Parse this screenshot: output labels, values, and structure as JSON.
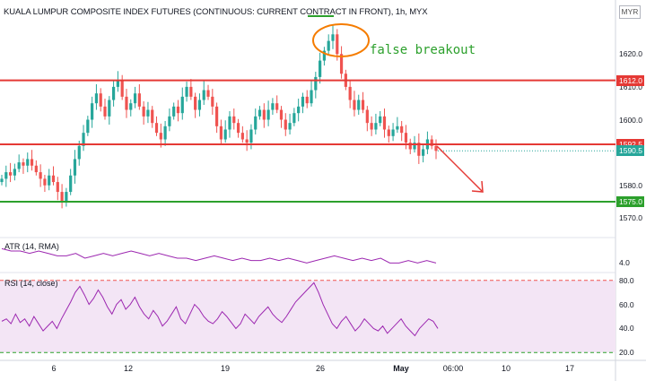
{
  "title": "KUALA LUMPUR COMPOSITE INDEX FUTURES (CONTINUOUS: CURRENT CONTRACT IN FRONT), 1h, MYX",
  "currency": "MYR",
  "annotation": "false breakout",
  "atr_label": "ATR (14, RMA)",
  "rsi_label": "RSI (14, close)",
  "colors": {
    "up": "#26a69a",
    "down": "#ef5350",
    "resistance": "#e53935",
    "support": "#2ca02c",
    "oscillator": "#9c27b0",
    "rsi_band": "#f3e5f5",
    "arrow": "#e53935",
    "ellipse": "#f57c00",
    "last_price": "#26a69a"
  },
  "chart_data": [
    {
      "type": "candlestick",
      "title": "KUALA LUMPUR COMPOSITE INDEX FUTURES (CONTINUOUS: CURRENT CONTRACT IN FRONT), 1h, MYX",
      "x_ticks": [
        "6",
        "12",
        "19",
        "26",
        "May",
        "06:00",
        "10",
        "17"
      ],
      "y_ticks": [
        1570.0,
        1580.0,
        1600.0,
        1610.0,
        1620.0
      ],
      "ylim": [
        1566,
        1631
      ],
      "horizontal_lines": [
        {
          "value": 1612.0,
          "label": "1612.0",
          "color": "#e53935"
        },
        {
          "value": 1592.5,
          "label": "1592.5",
          "color": "#e53935"
        },
        {
          "value": 1575.0,
          "label": "1575.0",
          "color": "#2ca02c"
        }
      ],
      "last_price": {
        "value": 1590.5,
        "label": "1590.5"
      },
      "approx_closes": [
        1582,
        1584,
        1583,
        1585,
        1587,
        1586,
        1588,
        1586,
        1584,
        1582,
        1580,
        1583,
        1581,
        1578,
        1575,
        1578,
        1583,
        1588,
        1592,
        1596,
        1600,
        1605,
        1608,
        1604,
        1601,
        1606,
        1610,
        1612,
        1607,
        1603,
        1605,
        1608,
        1604,
        1601,
        1603,
        1599,
        1596,
        1594,
        1598,
        1601,
        1604,
        1602,
        1607,
        1610,
        1607,
        1603,
        1606,
        1609,
        1607,
        1604,
        1598,
        1594,
        1597,
        1601,
        1599,
        1596,
        1594,
        1593,
        1597,
        1601,
        1603,
        1600,
        1603,
        1605,
        1603,
        1600,
        1597,
        1599,
        1602,
        1604,
        1607,
        1605,
        1609,
        1613,
        1618,
        1621,
        1624,
        1626,
        1620,
        1614,
        1610,
        1606,
        1603,
        1606,
        1603,
        1599,
        1597,
        1599,
        1601,
        1597,
        1595,
        1597,
        1598,
        1596,
        1593,
        1591,
        1593,
        1589,
        1591,
        1594,
        1592,
        1590.5
      ]
    },
    {
      "type": "line",
      "title": "ATR (14, RMA)",
      "y_ticks": [
        4.0
      ],
      "approx_values": [
        4.6,
        4.5,
        4.5,
        4.4,
        4.5,
        4.4,
        4.3,
        4.3,
        4.4,
        4.2,
        4.3,
        4.4,
        4.3,
        4.4,
        4.5,
        4.4,
        4.3,
        4.4,
        4.3,
        4.2,
        4.2,
        4.1,
        4.2,
        4.3,
        4.2,
        4.1,
        4.2,
        4.1,
        4.1,
        4.2,
        4.1,
        4.2,
        4.1,
        4.0,
        4.1,
        4.2,
        4.3,
        4.2,
        4.1,
        4.2,
        4.1,
        4.2,
        4.0,
        4.0,
        4.1,
        4.0,
        4.1,
        4.0
      ]
    },
    {
      "type": "line",
      "title": "RSI (14, close)",
      "y_ticks": [
        20.0,
        40.0,
        60.0,
        80.0
      ],
      "ylim": [
        15,
        85
      ],
      "bands": [
        20,
        80
      ],
      "approx_values": [
        46,
        48,
        44,
        52,
        45,
        48,
        42,
        50,
        44,
        38,
        42,
        46,
        40,
        48,
        55,
        62,
        70,
        75,
        68,
        60,
        65,
        72,
        66,
        58,
        52,
        60,
        64,
        56,
        60,
        66,
        58,
        52,
        48,
        55,
        50,
        42,
        46,
        52,
        58,
        48,
        44,
        52,
        60,
        56,
        50,
        46,
        44,
        48,
        54,
        50,
        45,
        40,
        44,
        52,
        48,
        44,
        50,
        54,
        58,
        52,
        48,
        45,
        50,
        56,
        62,
        66,
        70,
        74,
        78,
        70,
        60,
        52,
        44,
        40,
        46,
        50,
        44,
        38,
        42,
        48,
        44,
        40,
        38,
        42,
        36,
        40,
        44,
        48,
        42,
        38,
        34,
        40,
        44,
        48,
        46,
        40
      ]
    }
  ]
}
